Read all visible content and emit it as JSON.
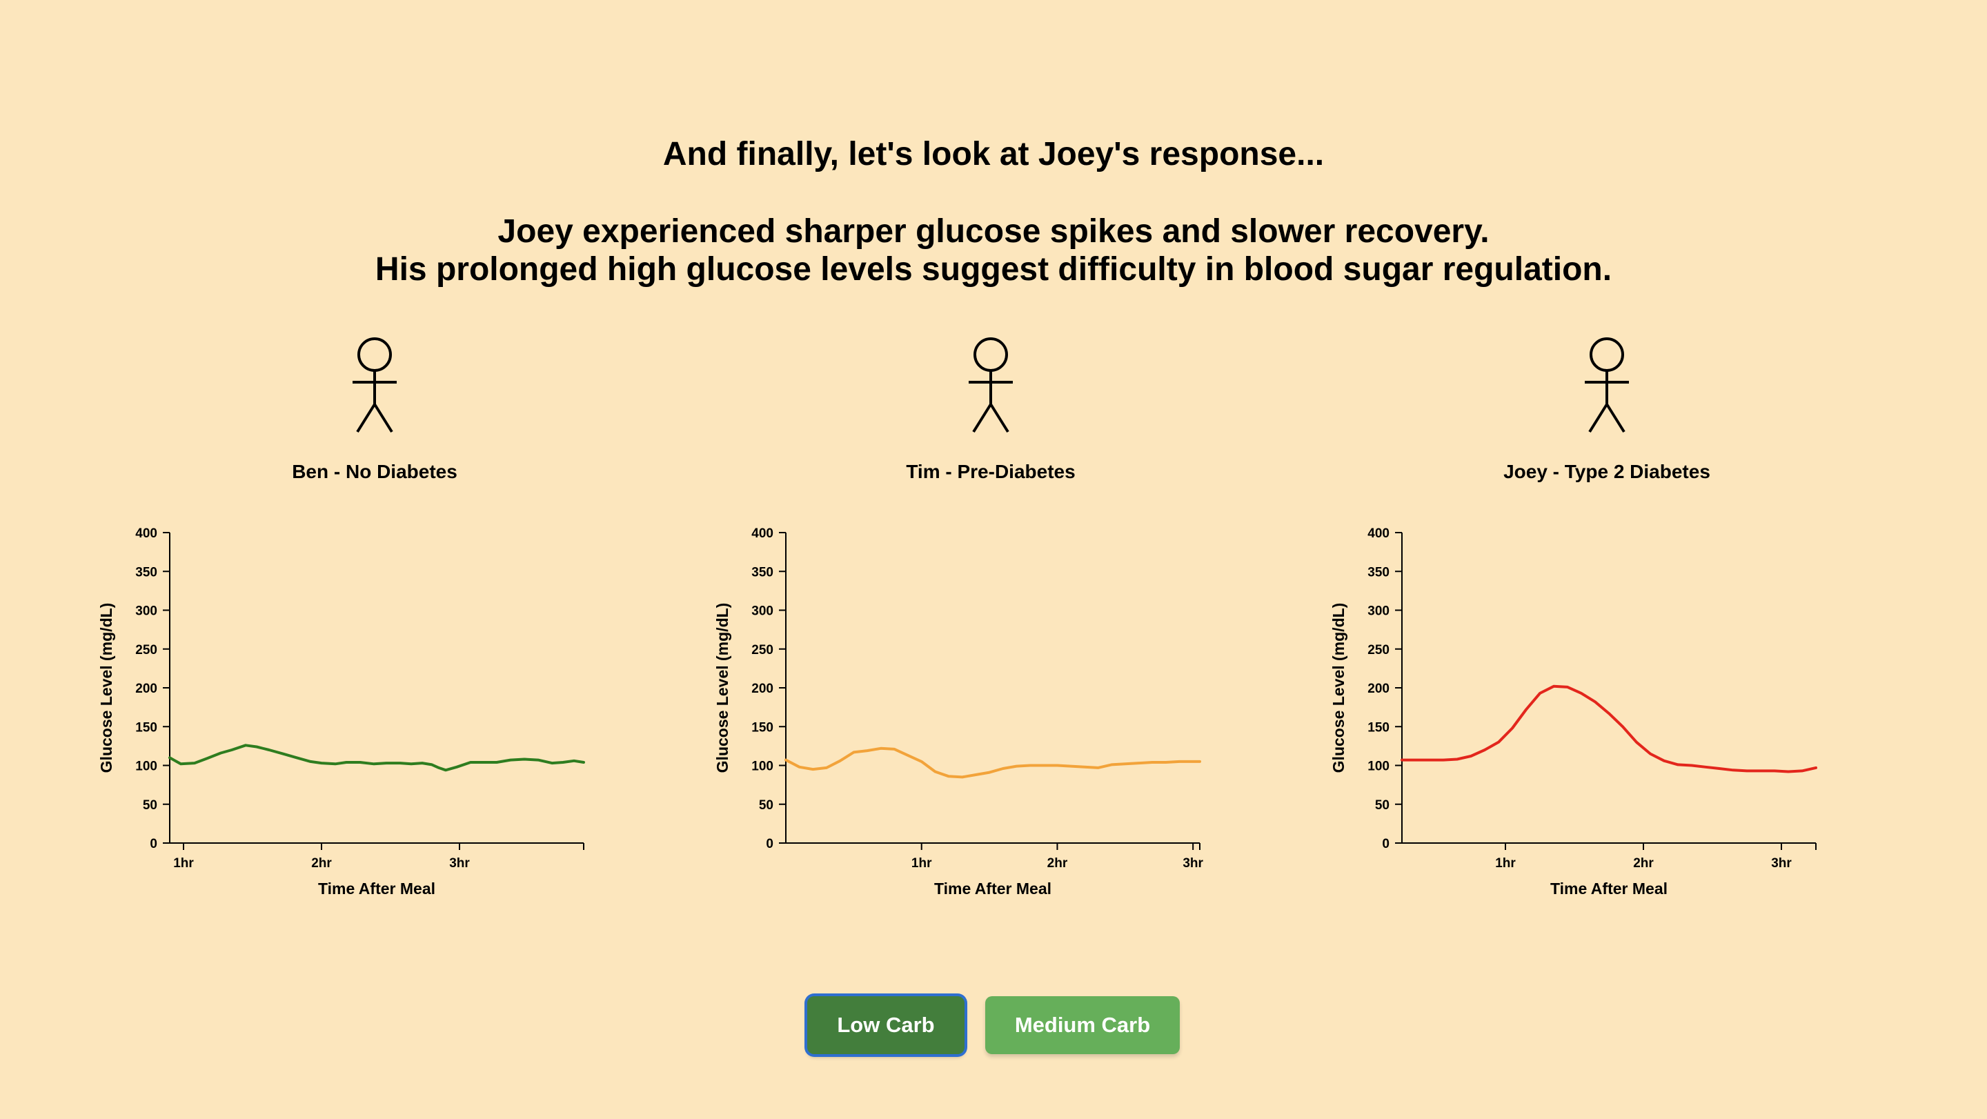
{
  "heading": "And finally, let's look at Joey's response...",
  "message_line1": "Joey experienced sharper glucose spikes and slower recovery.",
  "message_line2": "His prolonged high glucose levels suggest difficulty in blood sugar regulation.",
  "people": [
    {
      "name": "Ben - No Diabetes"
    },
    {
      "name": "Tim - Pre-Diabetes"
    },
    {
      "name": "Joey - Type 2 Diabetes"
    }
  ],
  "buttons": {
    "low_carb": "Low Carb",
    "medium_carb": "Medium Carb"
  },
  "chart_data": [
    {
      "type": "line",
      "title": "Ben - No Diabetes",
      "xlabel": "Time After Meal",
      "ylabel": "Glucose Level (mg/dL)",
      "ylim": [
        0,
        400
      ],
      "xlim": [
        0.9,
        3.9
      ],
      "x_ticks": [
        1,
        2,
        3
      ],
      "x_tick_labels": [
        "1hr",
        "2hr",
        "3hr"
      ],
      "y_ticks": [
        0,
        50,
        100,
        150,
        200,
        250,
        300,
        350,
        400
      ],
      "color": "#2e7d1f",
      "x": [
        0.9,
        0.98,
        1.08,
        1.17,
        1.27,
        1.35,
        1.45,
        1.53,
        1.62,
        1.72,
        1.82,
        1.92,
        2.0,
        2.1,
        2.18,
        2.28,
        2.38,
        2.47,
        2.57,
        2.65,
        2.73,
        2.8,
        2.85,
        2.9,
        2.98,
        3.08,
        3.18,
        3.27,
        3.37,
        3.47,
        3.57,
        3.67,
        3.75,
        3.83,
        3.9
      ],
      "y": [
        110,
        102,
        103,
        109,
        116,
        120,
        126,
        124,
        120,
        115,
        110,
        105,
        103,
        102,
        104,
        104,
        102,
        103,
        103,
        102,
        103,
        101,
        97,
        94,
        98,
        104,
        104,
        104,
        107,
        108,
        107,
        103,
        104,
        106,
        104
      ]
    },
    {
      "type": "line",
      "title": "Tim - Pre-Diabetes",
      "xlabel": "Time After Meal",
      "ylabel": "Glucose Level (mg/dL)",
      "ylim": [
        0,
        400
      ],
      "xlim": [
        0,
        3.05
      ],
      "x_ticks": [
        1,
        2,
        3
      ],
      "x_tick_labels": [
        "1hr",
        "2hr",
        "3hr"
      ],
      "y_ticks": [
        0,
        50,
        100,
        150,
        200,
        250,
        300,
        350,
        400
      ],
      "color": "#f2a33a",
      "x": [
        0,
        0.1,
        0.2,
        0.3,
        0.4,
        0.5,
        0.6,
        0.7,
        0.8,
        0.9,
        1.0,
        1.1,
        1.2,
        1.3,
        1.4,
        1.5,
        1.6,
        1.7,
        1.8,
        1.9,
        2.0,
        2.1,
        2.2,
        2.3,
        2.4,
        2.5,
        2.6,
        2.7,
        2.8,
        2.9,
        3.0,
        3.05
      ],
      "y": [
        107,
        98,
        95,
        97,
        106,
        117,
        119,
        122,
        121,
        113,
        105,
        92,
        86,
        85,
        88,
        91,
        96,
        99,
        100,
        100,
        100,
        99,
        98,
        97,
        101,
        102,
        103,
        104,
        104,
        105,
        105,
        105
      ]
    },
    {
      "type": "line",
      "title": "Joey - Type 2 Diabetes",
      "xlabel": "Time After Meal",
      "ylabel": "Glucose Level (mg/dL)",
      "ylim": [
        0,
        400
      ],
      "xlim": [
        0.25,
        3.25
      ],
      "x_ticks": [
        1,
        2,
        3
      ],
      "x_tick_labels": [
        "1hr",
        "2hr",
        "3hr"
      ],
      "y_ticks": [
        0,
        50,
        100,
        150,
        200,
        250,
        300,
        350,
        400
      ],
      "color": "#e3261c",
      "x": [
        0.25,
        0.35,
        0.45,
        0.55,
        0.65,
        0.75,
        0.85,
        0.95,
        1.05,
        1.15,
        1.25,
        1.35,
        1.45,
        1.55,
        1.65,
        1.75,
        1.85,
        1.95,
        2.05,
        2.15,
        2.25,
        2.35,
        2.45,
        2.55,
        2.65,
        2.75,
        2.85,
        2.95,
        3.05,
        3.15,
        3.25
      ],
      "y": [
        107,
        107,
        107,
        107,
        108,
        112,
        120,
        130,
        148,
        172,
        193,
        202,
        201,
        193,
        182,
        167,
        150,
        130,
        115,
        106,
        101,
        100,
        98,
        96,
        94,
        93,
        93,
        93,
        92,
        93,
        97
      ]
    }
  ]
}
